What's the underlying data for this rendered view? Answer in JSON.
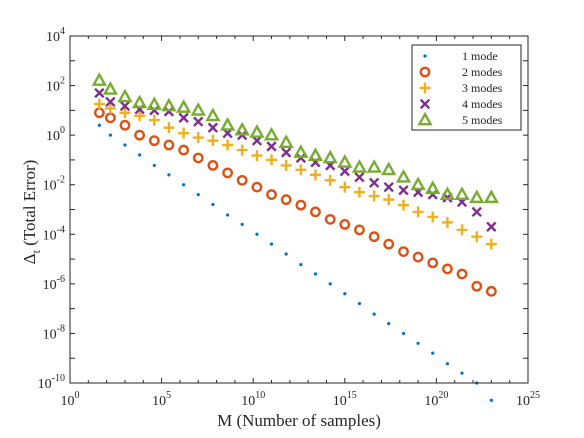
{
  "chart_data": {
    "type": "scatter",
    "xlabel": "M (Number of samples)",
    "ylabel_main": "Δ",
    "ylabel_sub": "t",
    "ylabel_rest": " (Total Error)",
    "x_scale": "log",
    "y_scale": "log",
    "xlim": [
      1,
      1e+25
    ],
    "ylim": [
      1e-10,
      10000.0
    ],
    "x_ticks": [
      {
        "value": 1,
        "base": "10",
        "exp": "0"
      },
      {
        "value": 100000.0,
        "base": "10",
        "exp": "5"
      },
      {
        "value": 10000000000.0,
        "base": "10",
        "exp": "10"
      },
      {
        "value": 1000000000000000.0,
        "base": "10",
        "exp": "15"
      },
      {
        "value": 1e+20,
        "base": "10",
        "exp": "20"
      },
      {
        "value": 1e+25,
        "base": "10",
        "exp": "25"
      }
    ],
    "y_ticks": [
      {
        "value": 1e-10,
        "base": "10",
        "exp": "-10"
      },
      {
        "value": 1e-08,
        "base": "10",
        "exp": "-8"
      },
      {
        "value": 1e-06,
        "base": "10",
        "exp": "-6"
      },
      {
        "value": 0.0001,
        "base": "10",
        "exp": "-4"
      },
      {
        "value": 0.01,
        "base": "10",
        "exp": "-2"
      },
      {
        "value": 1,
        "base": "10",
        "exp": "0"
      },
      {
        "value": 100.0,
        "base": "10",
        "exp": "2"
      },
      {
        "value": 10000.0,
        "base": "10",
        "exp": "4"
      }
    ],
    "grid": false,
    "legend_position": "top-right",
    "x": [
      40,
      160,
      1000,
      6300,
      40000,
      250000,
      1600000,
      10000000,
      63000000,
      400000000,
      2500000000,
      16000000000,
      100000000000,
      630000000000,
      4000000000000,
      25000000000000,
      160000000000000,
      1000000000000000,
      6300000000000000,
      40000000000000000,
      250000000000000000,
      1600000000000000000,
      10000000000000000000,
      63000000000000000000,
      400000000000000000000,
      2.5e+21,
      1.6e+22,
      1e+23
    ],
    "series": [
      {
        "name": "1 mode",
        "marker": "dot",
        "color": "#0072BD",
        "values": [
          2.5,
          1.0,
          0.4,
          0.16,
          0.06,
          0.025,
          0.01,
          0.004,
          0.0016,
          0.0006,
          0.00025,
          0.0001,
          4e-05,
          1.6e-05,
          6e-06,
          2.5e-06,
          1e-06,
          4e-07,
          1.6e-07,
          6e-08,
          2.5e-08,
          1e-08,
          4e-09,
          1.6e-09,
          6e-10,
          2.5e-10,
          1e-10,
          2e-11
        ]
      },
      {
        "name": "2 modes",
        "marker": "circle",
        "color": "#D95319",
        "values": [
          8,
          5,
          2.5,
          1.0,
          0.6,
          0.4,
          0.25,
          0.12,
          0.06,
          0.03,
          0.015,
          0.008,
          0.004,
          0.0025,
          0.0015,
          0.0008,
          0.0004,
          0.00025,
          0.00015,
          8e-05,
          4e-05,
          2e-05,
          1.2e-05,
          7e-06,
          4e-06,
          2.5e-06,
          8e-07,
          5e-07
        ]
      },
      {
        "name": "3 modes",
        "marker": "plus",
        "color": "#EDB120",
        "values": [
          18,
          12,
          8,
          6,
          4,
          2,
          1.2,
          0.8,
          0.6,
          0.4,
          0.25,
          0.15,
          0.1,
          0.06,
          0.04,
          0.025,
          0.015,
          0.008,
          0.005,
          0.0035,
          0.0025,
          0.0015,
          0.0008,
          0.0005,
          0.0003,
          0.00015,
          8e-05,
          4e-05
        ]
      },
      {
        "name": "4 modes",
        "marker": "cross",
        "color": "#7E2F8E",
        "values": [
          50,
          22,
          15,
          11,
          10,
          9,
          5,
          3.5,
          2,
          1.2,
          1.0,
          0.6,
          0.35,
          0.2,
          0.12,
          0.08,
          0.06,
          0.035,
          0.02,
          0.012,
          0.008,
          0.006,
          0.005,
          0.004,
          0.003,
          0.002,
          0.0008,
          0.0002
        ]
      },
      {
        "name": "5 modes",
        "marker": "triangle",
        "color": "#77AC30",
        "values": [
          160,
          70,
          35,
          20,
          17,
          15,
          13,
          10,
          6,
          2.5,
          1.6,
          1.3,
          1.0,
          0.5,
          0.2,
          0.15,
          0.12,
          0.08,
          0.05,
          0.05,
          0.04,
          0.02,
          0.01,
          0.007,
          0.004,
          0.004,
          0.003,
          0.003
        ]
      }
    ]
  }
}
